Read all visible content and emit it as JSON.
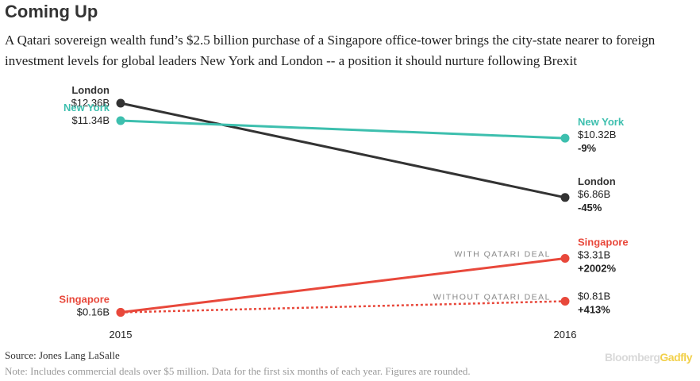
{
  "header": {
    "title": "Coming Up",
    "subtitle": "A Qatari sovereign wealth fund’s $2.5 billion purchase of a Singapore office-tower brings the city-state nearer to foreign investment levels for global leaders New York and London -- a position it should nurture following Brexit"
  },
  "footer": {
    "source": "Source: Jones Lang LaSalle",
    "note": "Note: Includes commercial deals over $5 million. Data for the first six months of each year. Figures are rounded.",
    "brand_part1": "Bloomberg",
    "brand_part2": "Gadfly"
  },
  "chart_data": {
    "type": "line",
    "title": "Coming Up",
    "x": [
      "2015",
      "2016"
    ],
    "y_unit": "$B",
    "ylim": [
      0,
      12.36
    ],
    "grid": false,
    "series": [
      {
        "name": "London",
        "color": "#333333",
        "values": [
          12.36,
          6.86
        ],
        "start_label": "$12.36B",
        "end_label": "$6.86B",
        "change": "-45%",
        "dashed": false
      },
      {
        "name": "New York",
        "color": "#3dbfae",
        "values": [
          11.34,
          10.32
        ],
        "start_label": "$11.34B",
        "end_label": "$10.32B",
        "change": "-9%",
        "dashed": false
      },
      {
        "name": "Singapore",
        "color": "#e8483b",
        "values": [
          0.16,
          3.31
        ],
        "start_label": "$0.16B",
        "end_label": "$3.31B",
        "change": "+2002%",
        "annotation": "WITH QATARI DEAL",
        "dashed": false
      },
      {
        "name": "Singapore",
        "color": "#e8483b",
        "values": [
          0.16,
          0.81
        ],
        "end_label": "$0.81B",
        "change": "+413%",
        "annotation": "WITHOUT QATARI DEAL",
        "dashed": true
      }
    ]
  }
}
